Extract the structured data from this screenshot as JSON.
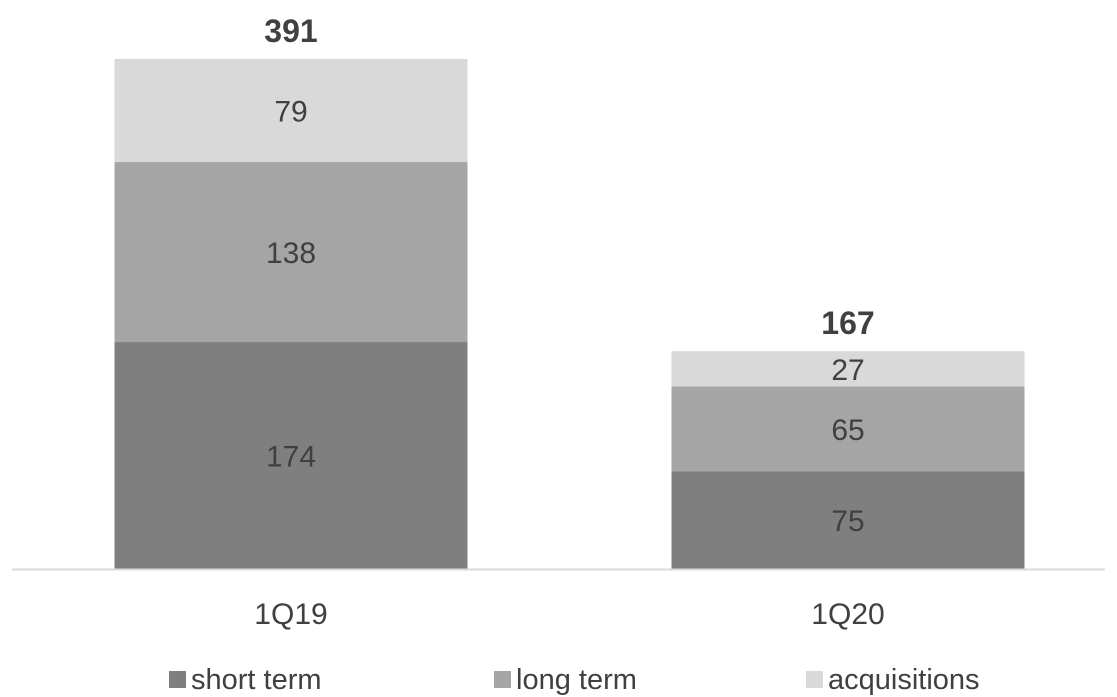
{
  "chart_data": {
    "type": "bar",
    "stacked": true,
    "categories": [
      "1Q19",
      "1Q20"
    ],
    "series": [
      {
        "name": "short term",
        "values": [
          174,
          75
        ],
        "color": "#7f7f7f"
      },
      {
        "name": "long term",
        "values": [
          138,
          65
        ],
        "color": "#a5a5a5"
      },
      {
        "name": "acquisitions",
        "values": [
          79,
          27
        ],
        "color": "#d9d9d9"
      }
    ],
    "totals": [
      "391",
      "167"
    ],
    "data_labels": [
      [
        "174",
        "75"
      ],
      [
        "138",
        "65"
      ],
      [
        "79",
        "27"
      ]
    ],
    "title": "",
    "xlabel": "",
    "ylabel": "",
    "ylim": [
      0,
      391
    ],
    "grid": false,
    "legend": "bottom",
    "axis_color": "#d9d9d9"
  }
}
